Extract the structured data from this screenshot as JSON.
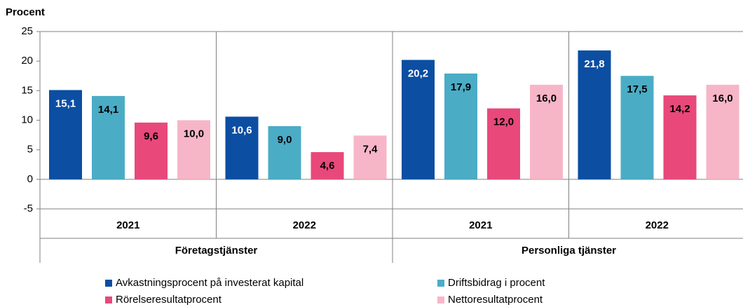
{
  "chart_data": {
    "type": "bar",
    "y_label": "Procent",
    "categories": [
      "2021",
      "2022",
      "2021",
      "2022"
    ],
    "groups": [
      "Företagstjänster",
      "Personliga tjänster"
    ],
    "series": [
      {
        "name": "Avkastningsprocent på investerat kapital",
        "color": "#0b4ea2",
        "values": [
          15.1,
          10.6,
          20.2,
          21.8
        ],
        "value_labels": [
          "15,1",
          "10,6",
          "20,2",
          "21,8"
        ]
      },
      {
        "name": "Driftsbidrag i procent",
        "color": "#4bacc6",
        "values": [
          14.1,
          9.0,
          17.9,
          17.5
        ],
        "value_labels": [
          "14,1",
          "9,0",
          "17,9",
          "17,5"
        ]
      },
      {
        "name": "Rörelseresultatprocent",
        "color": "#e8497a",
        "values": [
          9.6,
          4.6,
          12.0,
          14.2
        ],
        "value_labels": [
          "9,6",
          "4,6",
          "12,0",
          "14,2"
        ]
      },
      {
        "name": "Nettoresultatprocent",
        "color": "#f7b6c8",
        "values": [
          10.0,
          7.4,
          16.0,
          16.0
        ],
        "value_labels": [
          "10,0",
          "7,4",
          "16,0",
          "16,0"
        ]
      }
    ],
    "ylim": [
      -5,
      25
    ],
    "yticks": [
      -5,
      0,
      5,
      10,
      15,
      20,
      25
    ]
  }
}
